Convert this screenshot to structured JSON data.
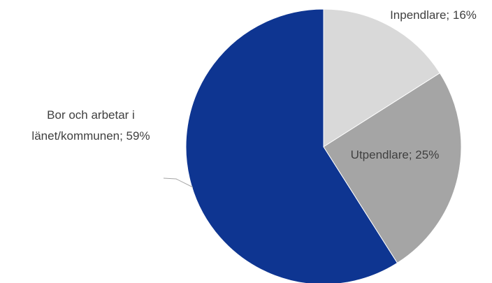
{
  "chart_data": {
    "type": "pie",
    "categories": [
      "Inpendlare",
      "Utpendlare",
      "Bor och arbetar i länet/kommunen"
    ],
    "values": [
      16,
      25,
      59
    ],
    "value_labels": [
      "Inpendlare; 16%",
      "Utpendlare; 25%",
      "Bor och arbetar i länet/kommunen; 59%"
    ],
    "colors": [
      "#d9d9d9",
      "#a5a5a5",
      "#0e3591"
    ]
  }
}
